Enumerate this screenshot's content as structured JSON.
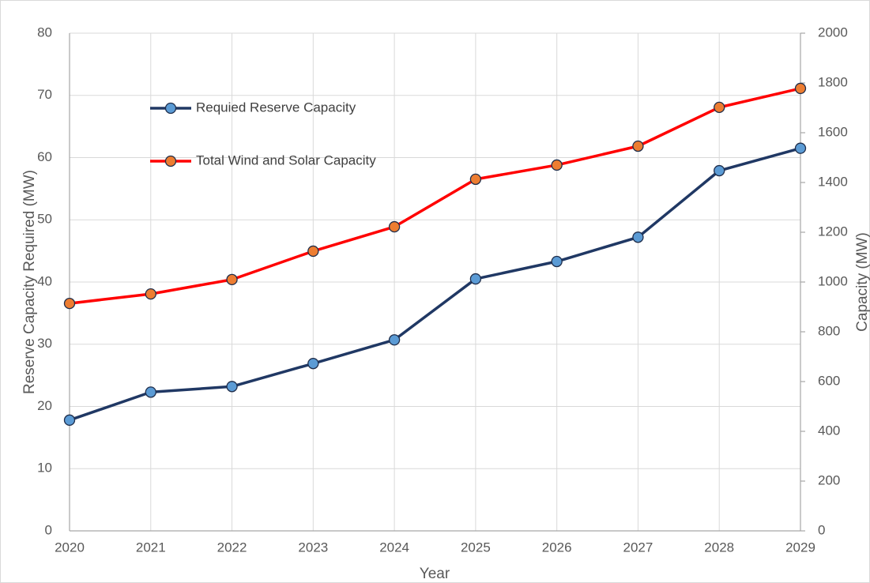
{
  "chart_data": {
    "type": "line",
    "x_label": "Year",
    "y_label": "Reserve Capacity Required (MW)",
    "y2_label": "Capacity (MW)",
    "categories": [
      "2020",
      "2021",
      "2022",
      "2023",
      "2024",
      "2025",
      "2026",
      "2027",
      "2028",
      "2029"
    ],
    "series": [
      {
        "name": "Requied Reserve Capacity",
        "color": "#203864",
        "marker_color": "#5b9bd5",
        "axis": "y",
        "values": [
          17.8,
          22.3,
          23.2,
          26.9,
          30.7,
          40.5,
          43.3,
          47.2,
          57.9,
          61.5
        ]
      },
      {
        "name": "Total Wind and Solar Capacity",
        "color": "#ff0000",
        "marker_color": "#ed7d31",
        "axis": "y2",
        "values": [
          914,
          952,
          1010,
          1124,
          1222,
          1413,
          1470,
          1546,
          1702,
          1778
        ]
      }
    ],
    "ylim": [
      0,
      80
    ],
    "yticks": [
      0,
      10,
      20,
      30,
      40,
      50,
      60,
      70,
      80
    ],
    "y2lim": [
      0,
      2000
    ],
    "y2ticks": [
      0,
      200,
      400,
      600,
      800,
      1000,
      1200,
      1400,
      1600,
      1800,
      2000
    ],
    "grid": true,
    "legend": "upper left"
  }
}
